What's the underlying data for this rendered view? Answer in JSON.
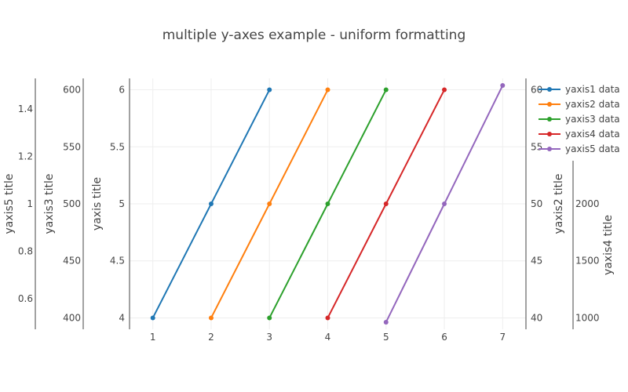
{
  "chart_data": {
    "type": "line",
    "title": "multiple y-axes example - uniform formatting",
    "x": {
      "range": [
        0.6,
        7.4
      ],
      "ticks": [
        "1",
        "2",
        "3",
        "4",
        "5",
        "6",
        "7"
      ]
    },
    "axes": [
      {
        "id": "y",
        "title": "yaxis title",
        "side": "left",
        "range": [
          3.9,
          6.1
        ],
        "ticks": [
          "4",
          "4.5",
          "5",
          "5.5",
          "6"
        ]
      },
      {
        "id": "y2",
        "title": "yaxis2 title",
        "side": "right",
        "range": [
          39,
          61
        ],
        "ticks": [
          "40",
          "45",
          "50",
          "55",
          "60"
        ]
      },
      {
        "id": "y3",
        "title": "yaxis3 title",
        "side": "left",
        "range": [
          390,
          610
        ],
        "ticks": [
          "400",
          "450",
          "500",
          "550",
          "600"
        ]
      },
      {
        "id": "y4",
        "title": "yaxis4 title",
        "side": "right",
        "range": [
          900,
          3100
        ],
        "ticks": [
          "1000",
          "1500",
          "2000"
        ]
      },
      {
        "id": "y5",
        "title": "yaxis5 title",
        "side": "left",
        "range": [
          0.47,
          1.53
        ],
        "ticks": [
          "0.6",
          "0.8",
          "1",
          "1.2",
          "1.4"
        ]
      }
    ],
    "series": [
      {
        "name": "yaxis1 data",
        "axis": "y",
        "color": "#1f77b4",
        "x": [
          1,
          2,
          3
        ],
        "y": [
          4,
          5,
          6
        ]
      },
      {
        "name": "yaxis2 data",
        "axis": "y2",
        "color": "#ff7f0e",
        "x": [
          2,
          3,
          4
        ],
        "y": [
          40,
          50,
          60
        ]
      },
      {
        "name": "yaxis3 data",
        "axis": "y3",
        "color": "#2ca02c",
        "x": [
          3,
          4,
          5
        ],
        "y": [
          400,
          500,
          600
        ]
      },
      {
        "name": "yaxis4 data",
        "axis": "y4",
        "color": "#d62728",
        "x": [
          4,
          5,
          6
        ],
        "y": [
          1000,
          2000,
          3000
        ]
      },
      {
        "name": "yaxis5 data",
        "axis": "y5",
        "color": "#9467bd",
        "x": [
          5,
          6,
          7
        ],
        "y": [
          0.5,
          1,
          1.5
        ]
      }
    ],
    "legend": "top-right",
    "grid": true
  }
}
